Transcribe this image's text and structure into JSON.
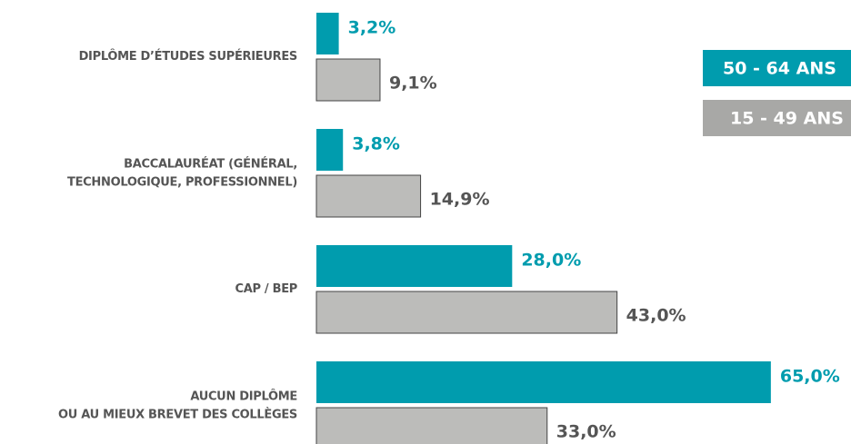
{
  "chart_data": {
    "type": "bar",
    "orientation": "horizontal",
    "categories": [
      "DIPLÔME D’ÉTUDES SUPÉRIEURES",
      "BACCALAURÉAT (GÉNÉRAL,\nTECHNOLOGIQUE, PROFESSIONNEL)",
      "CAP / BEP",
      "AUCUN DIPLÔME\nOU AU MIEUX BREVET DES COLLÈGES"
    ],
    "series": [
      {
        "name": "50 - 64 ANS",
        "color": "#009cae",
        "values": [
          3.2,
          3.8,
          28.0,
          65.0
        ],
        "value_labels": [
          "3,2%",
          "3,8%",
          "28,0%",
          "65,0%"
        ]
      },
      {
        "name": "15 - 49 ANS",
        "color": "#bcbcba",
        "values": [
          9.1,
          14.9,
          43.0,
          33.0
        ],
        "value_labels": [
          "9,1%",
          "14,9%",
          "43,0%",
          "33,0%"
        ]
      }
    ],
    "legend": "right"
  }
}
